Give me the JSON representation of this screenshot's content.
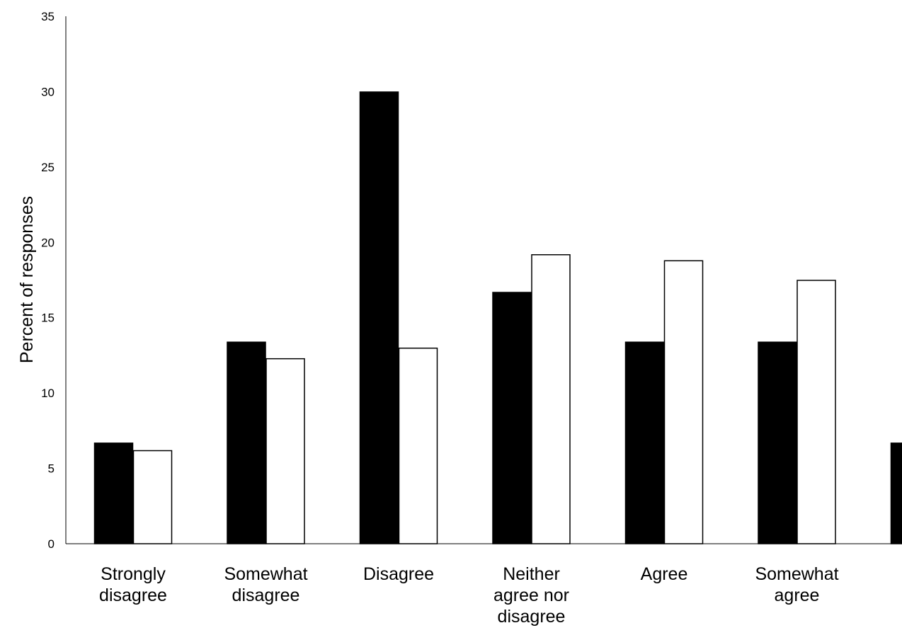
{
  "chart_data": {
    "type": "bar",
    "title": "",
    "xlabel": "",
    "ylabel": "Percent of responses",
    "ylim": [
      0,
      35
    ],
    "yticks": [
      0,
      5,
      10,
      15,
      20,
      25,
      30,
      35
    ],
    "grid": false,
    "legend": "none",
    "categories": [
      [
        "Strongly",
        "disagree"
      ],
      [
        "Somewhat",
        "disagree"
      ],
      [
        "Disagree"
      ],
      [
        "Neither",
        "agree nor",
        "disagree"
      ],
      [
        "Agree"
      ],
      [
        "Somewhat",
        "agree"
      ],
      [
        "S"
      ]
    ],
    "series": [
      {
        "color": "#000000",
        "values": [
          6.7,
          13.4,
          30.0,
          16.7,
          13.4,
          13.4,
          6.7
        ]
      },
      {
        "color": "#ffffff",
        "values": [
          6.2,
          12.3,
          13.0,
          19.2,
          18.8,
          17.5,
          null
        ]
      }
    ]
  }
}
